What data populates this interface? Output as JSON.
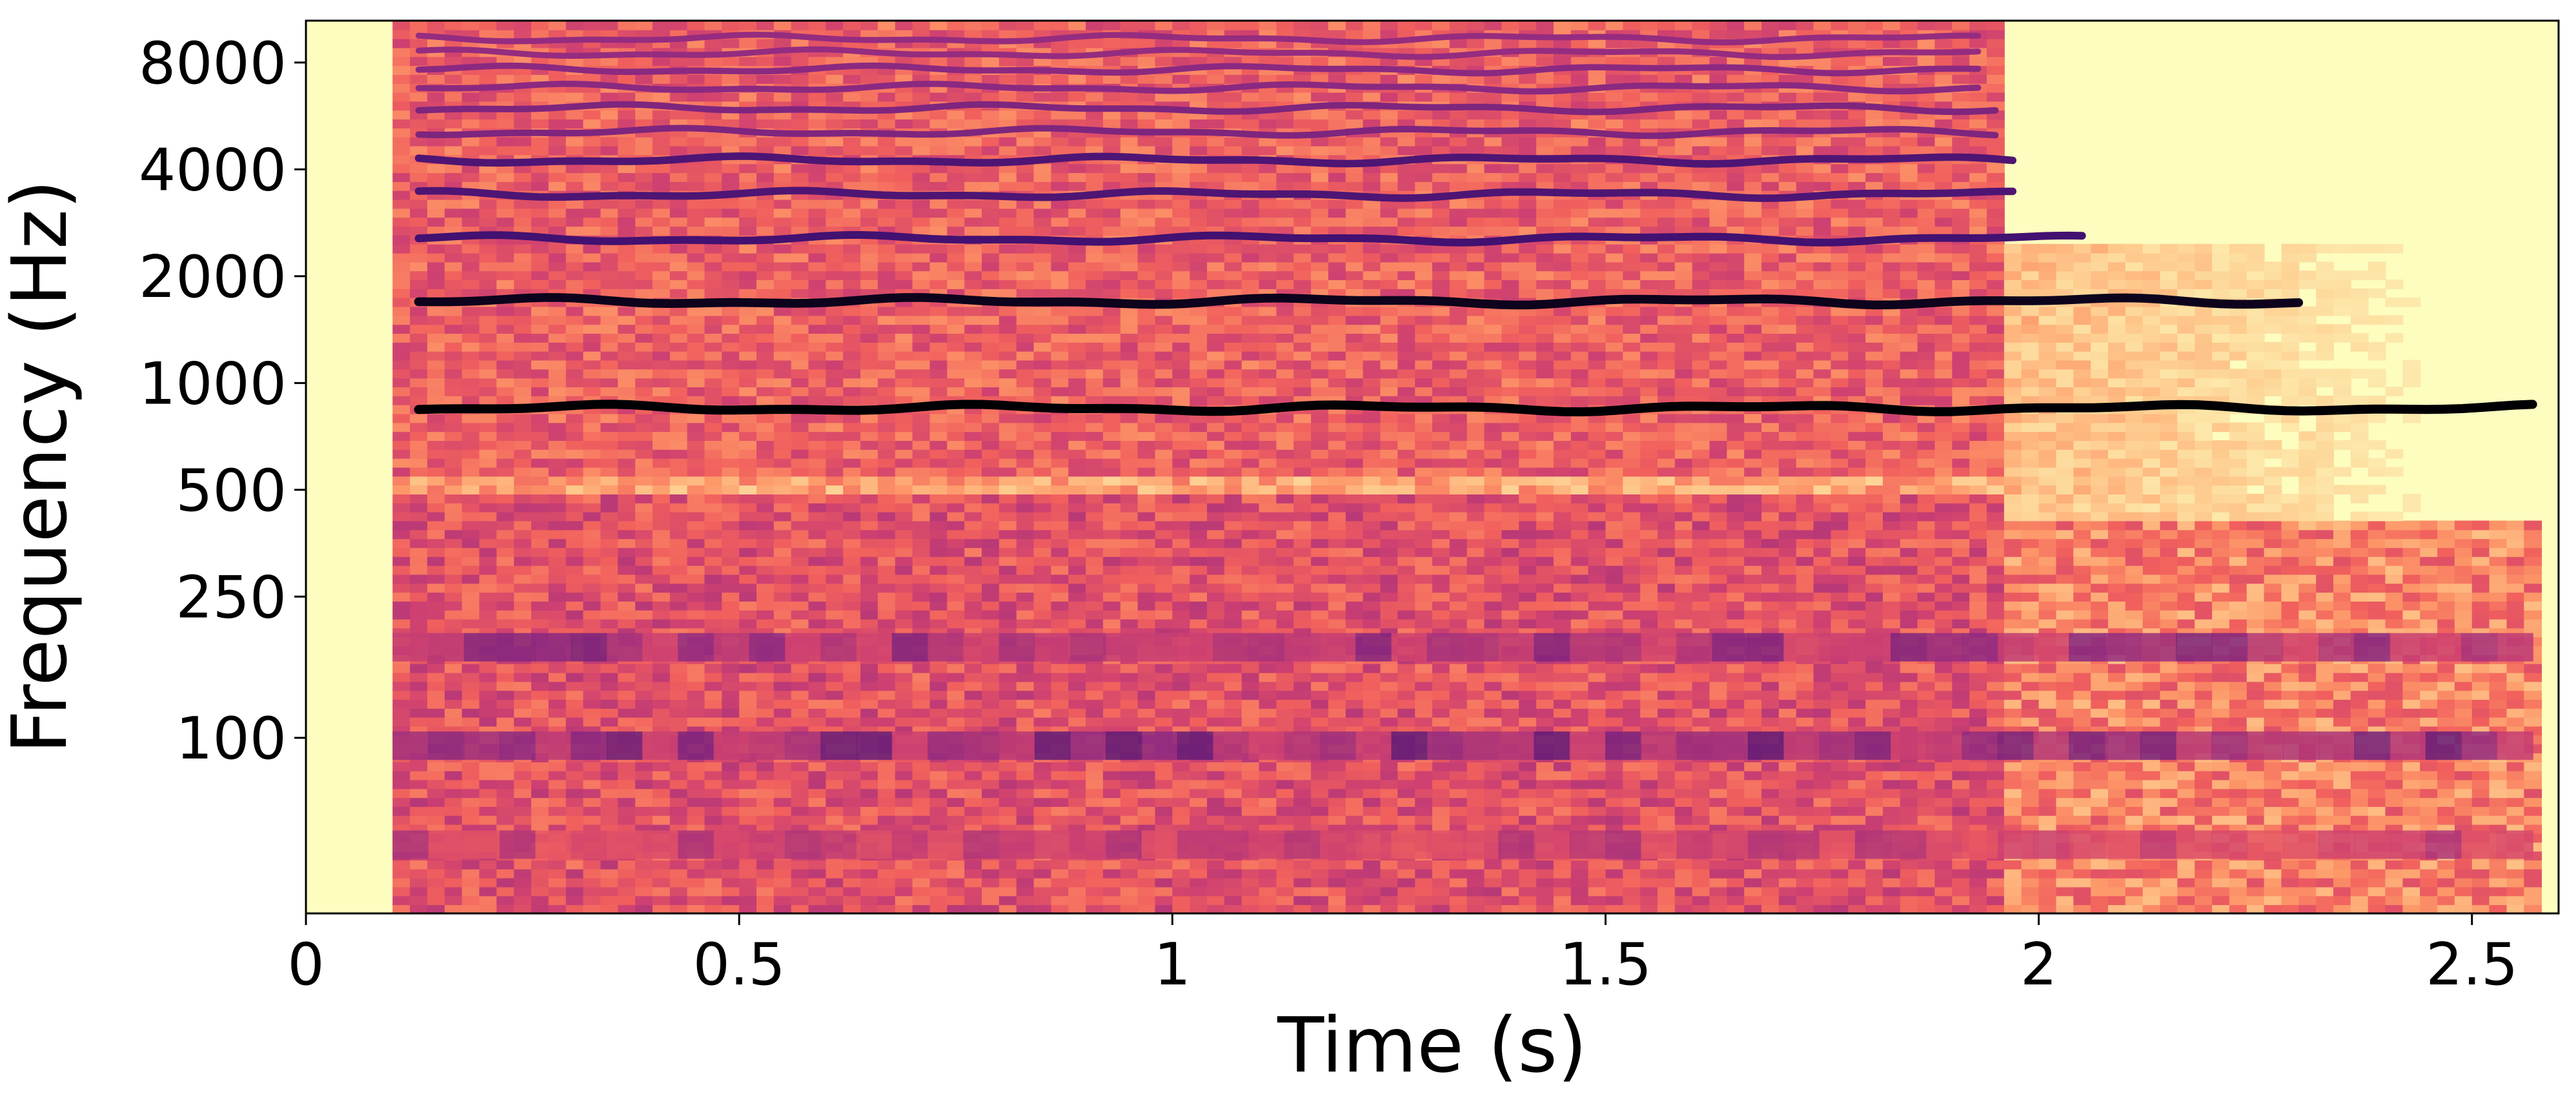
{
  "chart_data": {
    "type": "heatmap",
    "subtype": "spectrogram",
    "title": "",
    "xlabel": "Time (s)",
    "ylabel": "Frequency (Hz)",
    "xlim": [
      0,
      2.6
    ],
    "ylim": [
      32,
      10500
    ],
    "yscale": "log",
    "xticks": [
      {
        "value": 0,
        "label": "0"
      },
      {
        "value": 0.5,
        "label": "0.5"
      },
      {
        "value": 1,
        "label": "1"
      },
      {
        "value": 1.5,
        "label": "1.5"
      },
      {
        "value": 2,
        "label": "2"
      },
      {
        "value": 2.5,
        "label": "2.5"
      }
    ],
    "yticks": [
      {
        "value": 100,
        "label": "100"
      },
      {
        "value": 250,
        "label": "250"
      },
      {
        "value": 500,
        "label": "500"
      },
      {
        "value": 1000,
        "label": "1000"
      },
      {
        "value": 2000,
        "label": "2000"
      },
      {
        "value": 4000,
        "label": "4000"
      },
      {
        "value": 8000,
        "label": "8000"
      }
    ],
    "grid": false,
    "colormap": "magma_r",
    "colors": {
      "background": "#fcfdbf",
      "low": "#fcfdbf",
      "mid": "#f7705c",
      "high": "#b73779",
      "peak": "#000004"
    },
    "regions": [
      {
        "name": "onset silence",
        "t_start": 0,
        "t_end": 0.1
      },
      {
        "name": "full-band sound",
        "t_start": 0.1,
        "t_end": 1.95,
        "f_max": 9500
      },
      {
        "name": "decay",
        "t_start": 1.95,
        "t_end": 2.57,
        "f_max": 2500
      }
    ],
    "harmonics": [
      {
        "freq": 850,
        "t_end": 2.57,
        "strength": 1.0
      },
      {
        "freq": 1700,
        "t_end": 2.3,
        "strength": 0.95
      },
      {
        "freq": 2550,
        "t_end": 2.05,
        "strength": 0.75
      },
      {
        "freq": 3400,
        "t_end": 1.97,
        "strength": 0.7
      },
      {
        "freq": 4250,
        "t_end": 1.97,
        "strength": 0.7
      },
      {
        "freq": 5100,
        "t_end": 1.95,
        "strength": 0.5
      },
      {
        "freq": 5950,
        "t_end": 1.95,
        "strength": 0.5
      },
      {
        "freq": 6800,
        "t_end": 1.93,
        "strength": 0.45
      },
      {
        "freq": 7650,
        "t_end": 1.93,
        "strength": 0.45
      },
      {
        "freq": 8500,
        "t_end": 1.93,
        "strength": 0.4
      },
      {
        "freq": 9350,
        "t_end": 1.93,
        "strength": 0.4
      }
    ],
    "low_bands": [
      {
        "freq": 180,
        "strength": 0.75
      },
      {
        "freq": 95,
        "strength": 0.8
      },
      {
        "freq": 50,
        "strength": 0.65
      }
    ]
  }
}
